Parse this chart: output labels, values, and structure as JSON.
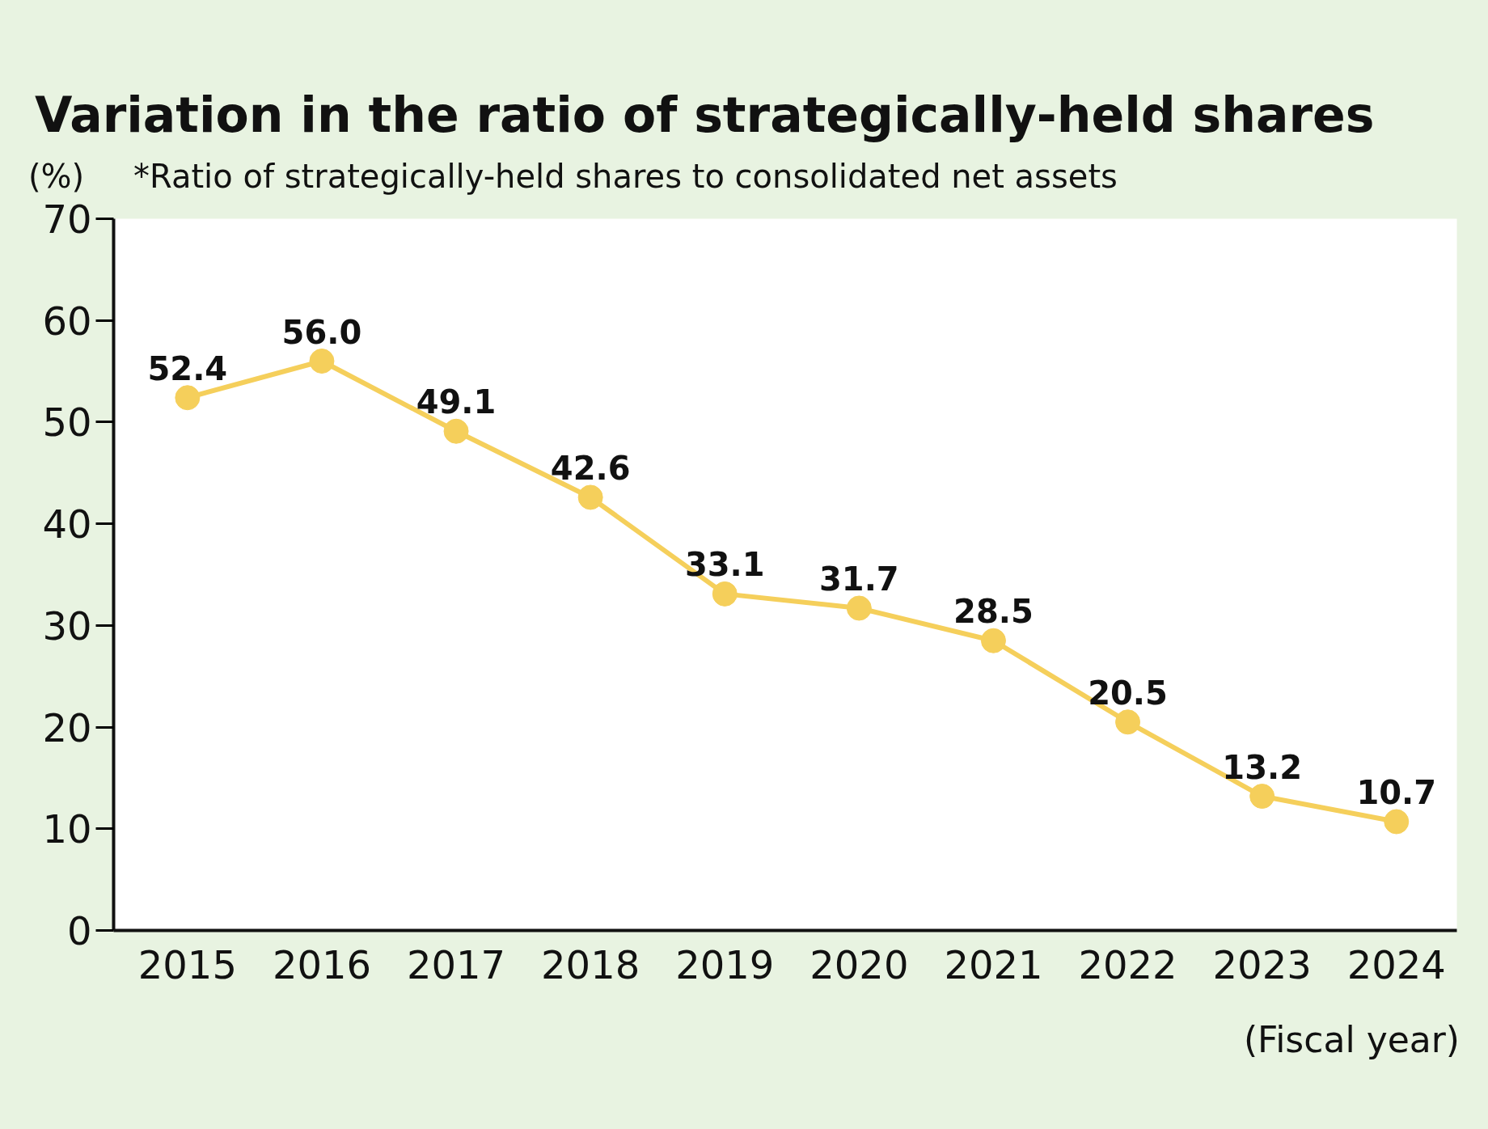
{
  "chart_data": {
    "type": "line",
    "title": "Variation in the ratio of strategically-held shares",
    "subtitle": "*Ratio of strategically-held shares to consolidated net assets",
    "ylabel": "(%)",
    "xlabel": "(Fiscal year)",
    "categories": [
      "2015",
      "2016",
      "2017",
      "2018",
      "2019",
      "2020",
      "2021",
      "2022",
      "2023",
      "2024"
    ],
    "series": [
      {
        "color": "#f5cf5b",
        "values": [
          52.4,
          56.0,
          49.1,
          42.6,
          33.1,
          31.7,
          28.5,
          20.5,
          13.2,
          10.7
        ],
        "value_labels": [
          "52.4",
          "56.0",
          "49.1",
          "42.6",
          "33.1",
          "31.7",
          "28.5",
          "20.5",
          "13.2",
          "10.7"
        ]
      }
    ],
    "ylim": [
      0,
      70
    ],
    "yticks": [
      0,
      10,
      20,
      30,
      40,
      50,
      60,
      70
    ],
    "grid": false,
    "marker": "circle",
    "line_style": "solid"
  }
}
